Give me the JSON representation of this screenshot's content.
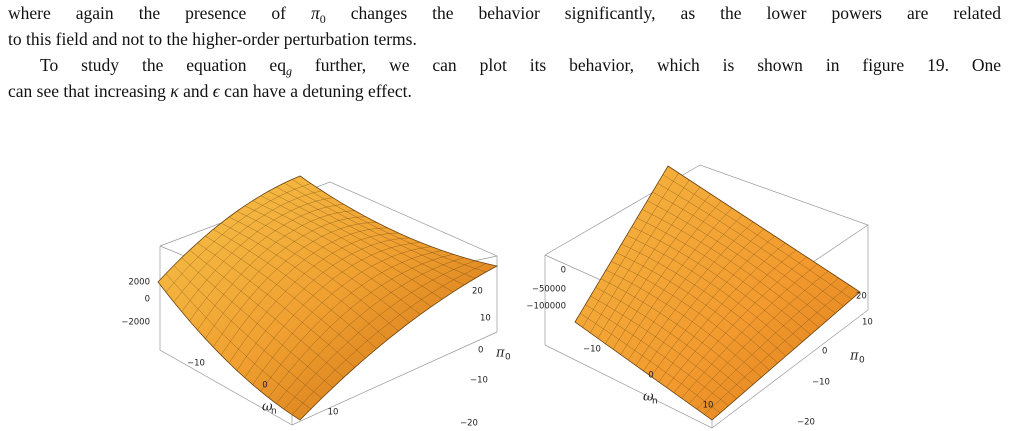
{
  "paragraphs": [
    {
      "lines": [
        [
          {
            "text": "where again the presence of "
          },
          {
            "text": "π",
            "style": "italic"
          },
          {
            "text": "0",
            "style": "sub"
          },
          {
            "text": " changes the behavior significantly, as the lower powers are related"
          }
        ],
        [
          {
            "text": "to this field and not to the higher-order perturbation terms."
          }
        ]
      ]
    },
    {
      "lines": [
        [
          {
            "text": "To study the equation eq"
          },
          {
            "text": "g",
            "style": "subi"
          },
          {
            "text": " further, we can plot its behavior, which is shown in figure 19. One"
          }
        ],
        [
          {
            "text": "can see that increasing "
          },
          {
            "text": "κ",
            "style": "italic"
          },
          {
            "text": " and "
          },
          {
            "text": "ϵ",
            "style": "italic"
          },
          {
            "text": " can have a detuning effect."
          }
        ]
      ]
    }
  ],
  "figures": [
    {
      "z_ticks": [
        "2000",
        "0",
        "−2000"
      ],
      "x_ticks": [
        "−10",
        "0",
        "10"
      ],
      "y_ticks": [
        "20",
        "10",
        "0",
        "−10",
        "−20"
      ],
      "x_label": {
        "symbol": "ω",
        "sub": "n"
      },
      "y_label": {
        "symbol": "π",
        "sub": "0"
      }
    },
    {
      "z_ticks": [
        "0",
        "−50000",
        "−100000"
      ],
      "x_ticks": [
        "−10",
        "0",
        "10"
      ],
      "y_ticks": [
        "20",
        "10",
        "0",
        "−10",
        "−20"
      ],
      "x_label": {
        "symbol": "ω",
        "sub": "n"
      },
      "y_label": {
        "symbol": "π",
        "sub": "0"
      }
    }
  ]
}
